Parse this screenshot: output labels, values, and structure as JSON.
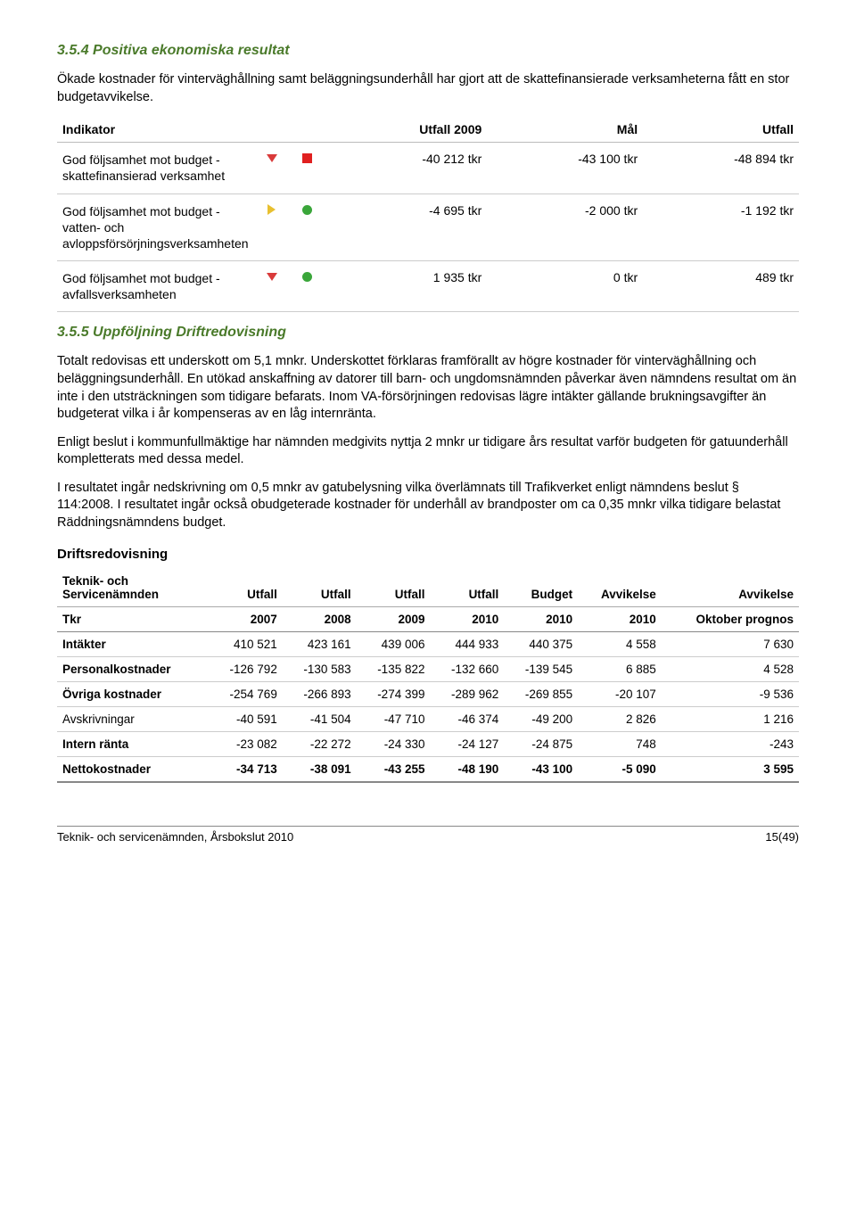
{
  "section354": {
    "heading": "3.5.4  Positiva ekonomiska resultat",
    "intro": "Ökade kostnader för vinterväghållning samt beläggningsunderhåll har gjort att de skattefinansierade verksamheterna fått en stor budgetavvikelse."
  },
  "indicator_table": {
    "headers": {
      "indikator": "Indikator",
      "utfall2009": "Utfall 2009",
      "mal": "Mål",
      "utfall": "Utfall"
    },
    "rows": [
      {
        "label": "God följsamhet mot budget - skattefinansierad verksamhet",
        "m1_type": "red-down",
        "m2_type": "red-square",
        "utfall2009": "-40 212 tkr",
        "mal": "-43 100 tkr",
        "utfall": "-48 894 tkr"
      },
      {
        "label": "God följsamhet mot budget - vatten- och avloppsförsörjningsverksamheten",
        "m1_type": "yellow-right",
        "m2_type": "green-circle",
        "utfall2009": "-4 695 tkr",
        "mal": "-2 000 tkr",
        "utfall": "-1 192 tkr"
      },
      {
        "label": "God följsamhet mot budget - avfallsverksamheten",
        "m1_type": "red-down",
        "m2_type": "green-circle",
        "utfall2009": "1 935 tkr",
        "mal": "0 tkr",
        "utfall": "489 tkr"
      }
    ]
  },
  "section355": {
    "heading": "3.5.5  Uppföljning Driftredovisning",
    "p1": "Totalt redovisas ett underskott om 5,1 mnkr. Underskottet förklaras framförallt av högre kostnader för vinterväghållning och beläggningsunderhåll. En utökad anskaffning av datorer till barn- och ungdomsnämnden påverkar även nämndens resultat om än inte i den utsträckningen som tidigare befarats. Inom VA-försörjningen redovisas lägre intäkter gällande brukningsavgifter än budgeterat vilka i år kompenseras av en låg internränta.",
    "p2": "Enligt beslut i kommunfullmäktige har nämnden medgivits nyttja 2 mnkr ur tidigare års resultat varför budgeten för gatuunderhåll kompletterats med dessa medel.",
    "p3": "I resultatet ingår nedskrivning om 0,5 mnkr av gatubelysning vilka överlämnats till Trafikverket enligt nämndens beslut § 114:2008. I resultatet ingår också obudgeterade kostnader för underhåll av brandposter om ca 0,35 mnkr vilka tidigare belastat Räddningsnämndens budget."
  },
  "drift": {
    "title": "Driftsredovisning",
    "head1": {
      "c1": "Teknik- och Servicenämnden",
      "c2": "Utfall",
      "c3": "Utfall",
      "c4": "Utfall",
      "c5": "Utfall",
      "c6": "Budget",
      "c7": "Avvikelse",
      "c8": "Avvikelse"
    },
    "head2": {
      "c1": "Tkr",
      "c2": "2007",
      "c3": "2008",
      "c4": "2009",
      "c5": "2010",
      "c6": "2010",
      "c7": "2010",
      "c8": "Oktober prognos"
    },
    "rows": [
      {
        "c1": "Intäkter",
        "c2": "410 521",
        "c3": "423 161",
        "c4": "439 006",
        "c5": "444 933",
        "c6": "440 375",
        "c7": "4 558",
        "c8": "7 630",
        "bold": true
      },
      {
        "c1": "Personalkostnader",
        "c2": "-126 792",
        "c3": "-130 583",
        "c4": "-135 822",
        "c5": "-132 660",
        "c6": "-139 545",
        "c7": "6 885",
        "c8": "4 528",
        "bold": true
      },
      {
        "c1": "Övriga kostnader",
        "c2": "-254 769",
        "c3": "-266 893",
        "c4": "-274 399",
        "c5": "-289 962",
        "c6": "-269 855",
        "c7": "-20 107",
        "c8": "-9 536",
        "bold": true
      },
      {
        "c1": "Avskrivningar",
        "c2": "-40 591",
        "c3": "-41 504",
        "c4": "-47 710",
        "c5": "-46 374",
        "c6": "-49 200",
        "c7": "2 826",
        "c8": "1 216",
        "bold": false
      },
      {
        "c1": "Intern ränta",
        "c2": "-23 082",
        "c3": "-22 272",
        "c4": "-24 330",
        "c5": "-24 127",
        "c6": "-24 875",
        "c7": "748",
        "c8": "-243",
        "bold": true
      }
    ],
    "totalrow": {
      "c1": "Nettokostnader",
      "c2": "-34 713",
      "c3": "-38 091",
      "c4": "-43 255",
      "c5": "-48 190",
      "c6": "-43 100",
      "c7": "-5 090",
      "c8": "3 595"
    }
  },
  "footer": {
    "left": "Teknik- och servicenämnden, Årsbokslut 2010",
    "right": "15(49)"
  }
}
